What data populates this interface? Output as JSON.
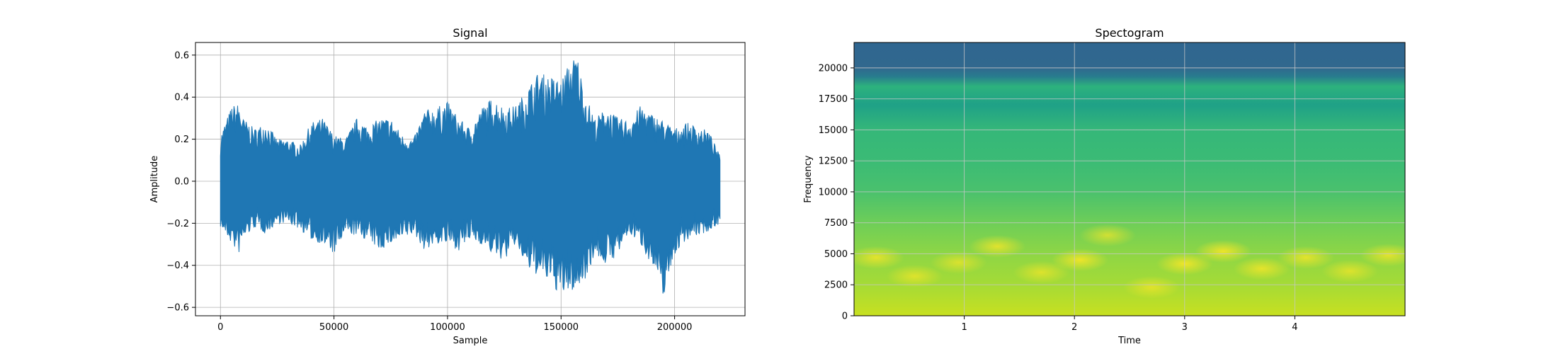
{
  "chart_data": [
    {
      "type": "line",
      "title": "Signal",
      "xlabel": "Sample",
      "ylabel": "Amplitude",
      "xlim": [
        -11000,
        231000
      ],
      "ylim": [
        -0.64,
        0.66
      ],
      "xticks": [
        0,
        50000,
        100000,
        150000,
        200000
      ],
      "xtick_labels": [
        "0",
        "50000",
        "100000",
        "150000",
        "200000"
      ],
      "yticks": [
        -0.6,
        -0.4,
        -0.2,
        0.0,
        0.2,
        0.4,
        0.6
      ],
      "ytick_labels": [
        "−0.6",
        "−0.4",
        "−0.2",
        "0.0",
        "0.2",
        "0.4",
        "0.6"
      ],
      "grid": true,
      "color": "#1f77b4",
      "series": [
        {
          "x": [
            0,
            5000,
            8000,
            10000,
            15000,
            20000,
            25000,
            30000,
            35000,
            40000,
            45000,
            50000,
            55000,
            60000,
            65000,
            70000,
            75000,
            80000,
            85000,
            90000,
            95000,
            100000,
            105000,
            110000,
            115000,
            120000,
            125000,
            130000,
            135000,
            140000,
            145000,
            150000,
            153000,
            157000,
            160000,
            165000,
            170000,
            175000,
            180000,
            185000,
            190000,
            195000,
            200000,
            205000,
            210000,
            215000,
            220000
          ],
          "upper": [
            0.22,
            0.36,
            0.37,
            0.3,
            0.25,
            0.28,
            0.2,
            0.2,
            0.17,
            0.28,
            0.3,
            0.22,
            0.2,
            0.3,
            0.26,
            0.3,
            0.3,
            0.22,
            0.2,
            0.34,
            0.35,
            0.38,
            0.3,
            0.25,
            0.35,
            0.4,
            0.35,
            0.36,
            0.44,
            0.52,
            0.5,
            0.48,
            0.55,
            0.61,
            0.43,
            0.3,
            0.35,
            0.3,
            0.29,
            0.36,
            0.32,
            0.29,
            0.25,
            0.28,
            0.26,
            0.24,
            0.12
          ],
          "lower": [
            -0.22,
            -0.3,
            -0.35,
            -0.28,
            -0.22,
            -0.25,
            -0.2,
            -0.2,
            -0.23,
            -0.28,
            -0.3,
            -0.35,
            -0.25,
            -0.26,
            -0.28,
            -0.33,
            -0.3,
            -0.28,
            -0.25,
            -0.33,
            -0.3,
            -0.3,
            -0.33,
            -0.28,
            -0.3,
            -0.35,
            -0.38,
            -0.3,
            -0.42,
            -0.45,
            -0.48,
            -0.55,
            -0.53,
            -0.52,
            -0.48,
            -0.35,
            -0.4,
            -0.35,
            -0.25,
            -0.3,
            -0.4,
            -0.55,
            -0.35,
            -0.28,
            -0.26,
            -0.24,
            -0.2
          ]
        }
      ]
    },
    {
      "type": "heatmap",
      "title": "Spectogram",
      "xlabel": "Time",
      "ylabel": "Frequency",
      "xlim": [
        0,
        5
      ],
      "ylim": [
        0,
        22050
      ],
      "xticks": [
        1,
        2,
        3,
        4
      ],
      "xtick_labels": [
        "1",
        "2",
        "3",
        "4"
      ],
      "yticks": [
        0,
        2500,
        5000,
        7500,
        10000,
        12500,
        15000,
        17500,
        20000
      ],
      "ytick_labels": [
        "0",
        "2500",
        "5000",
        "7500",
        "10000",
        "12500",
        "15000",
        "17500",
        "20000"
      ],
      "grid": true,
      "colormap_stops": [
        {
          "freq": 0,
          "color": "#c8e020"
        },
        {
          "freq": 2500,
          "color": "#a5db36"
        },
        {
          "freq": 5000,
          "color": "#8ed645"
        },
        {
          "freq": 7500,
          "color": "#6ece58"
        },
        {
          "freq": 10000,
          "color": "#4ac16d"
        },
        {
          "freq": 12500,
          "color": "#3bbb75"
        },
        {
          "freq": 15000,
          "color": "#35b779"
        },
        {
          "freq": 17000,
          "color": "#1fa187"
        },
        {
          "freq": 18500,
          "color": "#2db27d"
        },
        {
          "freq": 19300,
          "color": "#287c8e"
        },
        {
          "freq": 20000,
          "color": "#31688e"
        },
        {
          "freq": 22050,
          "color": "#2f6690"
        }
      ],
      "highlights": [
        {
          "t": 0.2,
          "f": 4700,
          "level": 0.8
        },
        {
          "t": 0.55,
          "f": 3200,
          "level": 0.7
        },
        {
          "t": 0.95,
          "f": 4300,
          "level": 0.7
        },
        {
          "t": 1.3,
          "f": 5600,
          "level": 0.8
        },
        {
          "t": 1.7,
          "f": 3500,
          "level": 0.7
        },
        {
          "t": 2.05,
          "f": 4500,
          "level": 0.9
        },
        {
          "t": 2.3,
          "f": 6500,
          "level": 0.7
        },
        {
          "t": 2.7,
          "f": 2300,
          "level": 0.7
        },
        {
          "t": 3.0,
          "f": 4200,
          "level": 0.9
        },
        {
          "t": 3.35,
          "f": 5200,
          "level": 0.9
        },
        {
          "t": 3.7,
          "f": 3800,
          "level": 0.8
        },
        {
          "t": 4.1,
          "f": 4700,
          "level": 0.8
        },
        {
          "t": 4.5,
          "f": 3600,
          "level": 0.7
        },
        {
          "t": 4.85,
          "f": 4900,
          "level": 0.8
        }
      ]
    }
  ]
}
